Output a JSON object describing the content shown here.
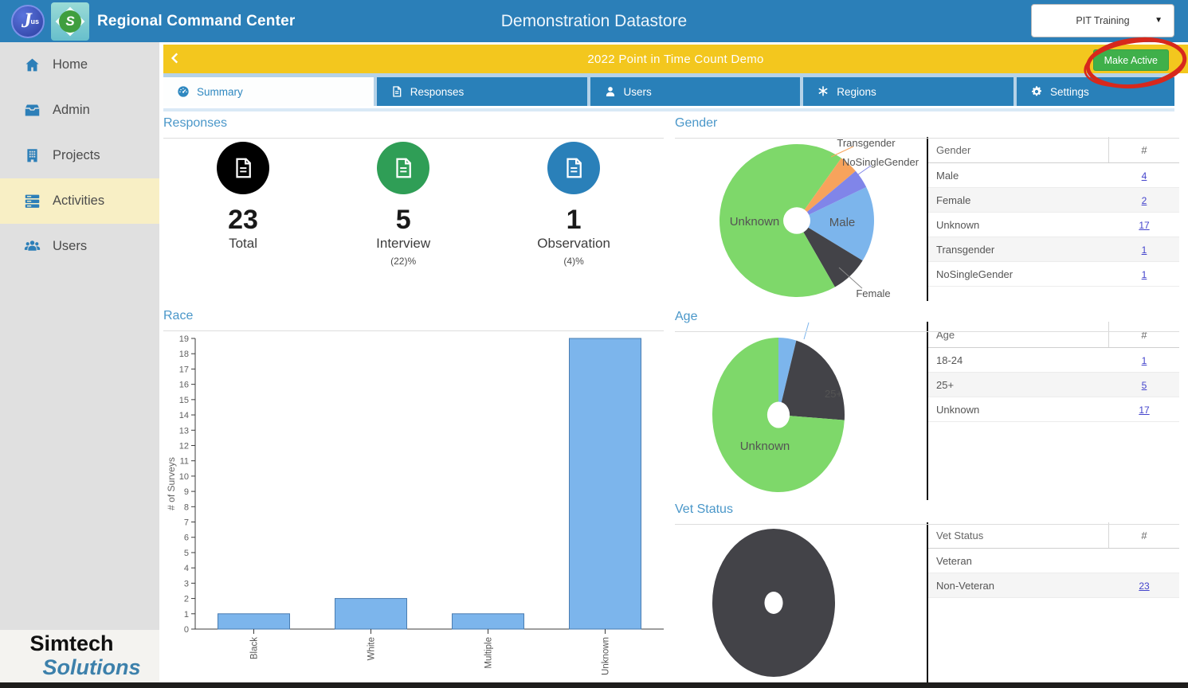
{
  "app": {
    "brand": "Regional Command Center",
    "title": "Demonstration Datastore",
    "environment": "PIT Training",
    "logo_primary_letter": "J",
    "logo_primary_sub": "us",
    "logo_secondary_letter": "S"
  },
  "banner": {
    "title": "2022 Point in Time Count Demo",
    "make_active_label": "Make Active"
  },
  "tabs": [
    {
      "label": "Summary",
      "icon": "gauge-icon",
      "active": true
    },
    {
      "label": "Responses",
      "icon": "file-icon",
      "active": false
    },
    {
      "label": "Users",
      "icon": "user-icon",
      "active": false
    },
    {
      "label": "Regions",
      "icon": "asterisk-icon",
      "active": false
    },
    {
      "label": "Settings",
      "icon": "gear-icon",
      "active": false
    }
  ],
  "sidebar": {
    "items": [
      {
        "label": "Home",
        "icon": "home-icon",
        "active": false
      },
      {
        "label": "Admin",
        "icon": "inbox-icon",
        "active": false
      },
      {
        "label": "Projects",
        "icon": "building-icon",
        "active": false
      },
      {
        "label": "Activities",
        "icon": "stack-icon",
        "active": true
      },
      {
        "label": "Users",
        "icon": "users-icon",
        "active": false
      }
    ],
    "vendor_line1": "Simtech",
    "vendor_line2": "Solutions"
  },
  "sections": {
    "responses": {
      "title": "Responses",
      "stats": [
        {
          "value": "23",
          "label": "Total",
          "sub": "",
          "color": "#000000"
        },
        {
          "value": "5",
          "label": "Interview",
          "sub": "(22)%",
          "color": "#2f9e56"
        },
        {
          "value": "1",
          "label": "Observation",
          "sub": "(4)%",
          "color": "#2a80b9"
        }
      ]
    },
    "gender": {
      "title": "Gender",
      "table": {
        "headers": [
          "Gender",
          "#"
        ],
        "rows": [
          [
            "Male",
            "4"
          ],
          [
            "Female",
            "2"
          ],
          [
            "Unknown",
            "17"
          ],
          [
            "Transgender",
            "1"
          ],
          [
            "NoSingleGender",
            "1"
          ]
        ]
      }
    },
    "race": {
      "title": "Race"
    },
    "age": {
      "title": "Age",
      "table": {
        "headers": [
          "Age",
          "#"
        ],
        "rows": [
          [
            "18-24",
            "1"
          ],
          [
            "25+",
            "5"
          ],
          [
            "Unknown",
            "17"
          ]
        ]
      }
    },
    "vet": {
      "title": "Vet Status",
      "table": {
        "headers": [
          "Vet Status",
          "#"
        ],
        "rows": [
          [
            "Veteran",
            ""
          ],
          [
            "Non-Veteran",
            "23"
          ]
        ]
      }
    }
  },
  "chart_data": [
    {
      "id": "gender",
      "type": "pie",
      "title": "Gender",
      "start_angle": 64,
      "hole": 0.175,
      "slices": [
        {
          "label": "Male",
          "value": 4,
          "color": "#7cb5ec"
        },
        {
          "label": "Female",
          "value": 2,
          "color": "#434348"
        },
        {
          "label": "Unknown",
          "value": 17,
          "color": "#7ed86a"
        },
        {
          "label": "Transgender",
          "value": 1,
          "color": "#f7a35c"
        },
        {
          "label": "NoSingleGender",
          "value": 1,
          "color": "#8085e9"
        }
      ],
      "labels": [
        {
          "text": "Unknown",
          "x": 100,
          "y": 115,
          "size": 15
        },
        {
          "text": "Male",
          "x": 210,
          "y": 116,
          "size": 15
        },
        {
          "text": "Transgender",
          "x": 240,
          "y": 16,
          "size": 13,
          "leader": [
            [
              196,
              29
            ],
            [
              224,
              16
            ]
          ],
          "leader_color": "#f7a35c"
        },
        {
          "text": "NoSingleGender",
          "x": 258,
          "y": 40,
          "size": 13,
          "leader": [
            [
              223,
              56
            ],
            [
              246,
              40
            ]
          ],
          "leader_color": "#8085e9"
        },
        {
          "text": "Female",
          "x": 249,
          "y": 205,
          "size": 13,
          "leader": [
            [
              206,
              168
            ],
            [
              235,
              194
            ]
          ],
          "leader_color": "#8a8a8a"
        }
      ]
    },
    {
      "id": "race",
      "type": "bar",
      "title": "Race",
      "categories": [
        "Black",
        "White",
        "Multiple",
        "Unknown"
      ],
      "values": [
        1,
        2,
        1,
        19
      ],
      "xlabel": "",
      "ylabel": "# of Surveys",
      "ylim": [
        0,
        19
      ],
      "grid": false,
      "bar_color": "#7cb5ec",
      "bar_border": "#4a7db1"
    },
    {
      "id": "age",
      "type": "pie",
      "title": "Age",
      "start_angle": 0,
      "hole": 0.17,
      "slices": [
        {
          "label": "18-24",
          "value": 1,
          "color": "#7cb5ec"
        },
        {
          "label": "25+",
          "value": 5,
          "color": "#434348"
        },
        {
          "label": "Unknown",
          "value": 17,
          "color": "#7ed86a"
        }
      ],
      "labels": [
        {
          "text": "25+",
          "x": 199,
          "y": 99,
          "size": 13,
          "color": "#8d8d93"
        },
        {
          "text": "Unknown",
          "x": 113,
          "y": 165,
          "size": 15
        },
        {
          "text": "",
          "x": 0,
          "y": 0,
          "leader": [
            [
              162,
              26
            ],
            [
              168,
              5
            ]
          ],
          "leader_color": "#7cb5ec"
        }
      ]
    },
    {
      "id": "vet",
      "type": "pie",
      "title": "Vet Status",
      "start_angle": 0,
      "hole": 0.15,
      "slices": [
        {
          "label": "Non-Veteran",
          "value": 23,
          "color": "#434348"
        }
      ],
      "labels": []
    }
  ]
}
